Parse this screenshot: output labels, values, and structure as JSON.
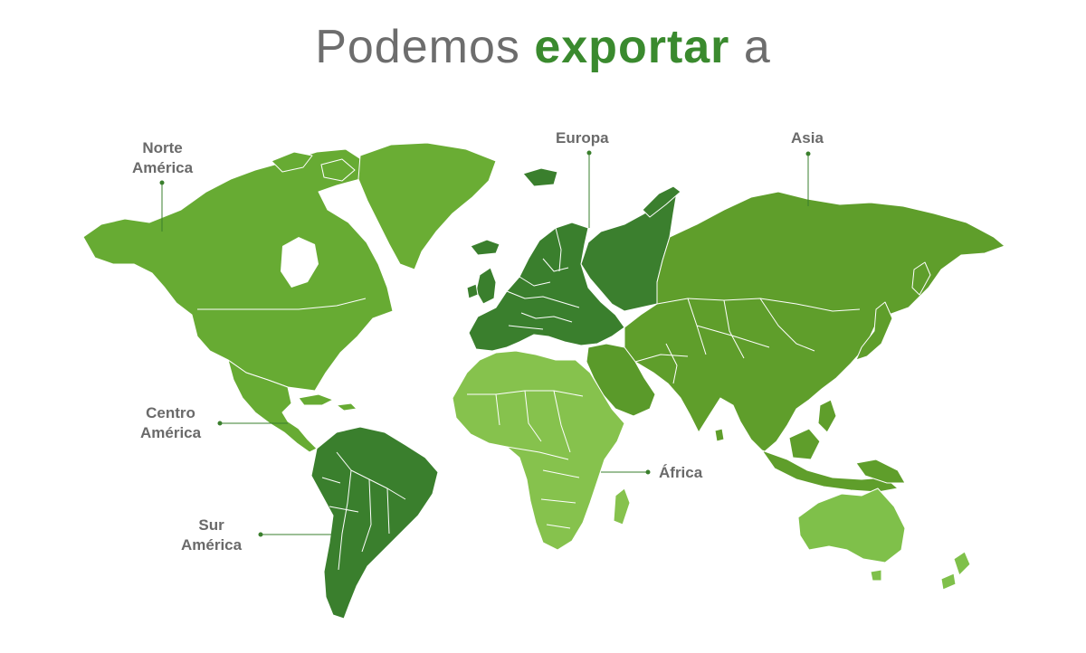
{
  "title": {
    "pre": "Podemos",
    "em": "exportar",
    "post": "a"
  },
  "colors": {
    "north_america": "#67ab33",
    "greenland": "#6aad34",
    "central_america": "#67ab33",
    "south_america": "#3a7f2d",
    "europe": "#3a7f2d",
    "russia": "#3b7f2e",
    "asia": "#5f9e2b",
    "middle_east": "#5a9a2a",
    "africa": "#86c24d",
    "oceania": "#7fc04a",
    "border": "#ffffff",
    "leader_line": "#3a7f2d",
    "title_gray": "#6d6d6d",
    "title_green": "#3a8a2e",
    "label_gray": "#6a6a6a"
  },
  "regions": {
    "north_america": {
      "line1": "Norte",
      "line2": "América"
    },
    "europe": {
      "line1": "Europa"
    },
    "asia": {
      "line1": "Asia"
    },
    "central_america": {
      "line1": "Centro",
      "line2": "América"
    },
    "africa": {
      "line1": "África"
    },
    "south_america": {
      "line1": "Sur",
      "line2": "América"
    }
  }
}
